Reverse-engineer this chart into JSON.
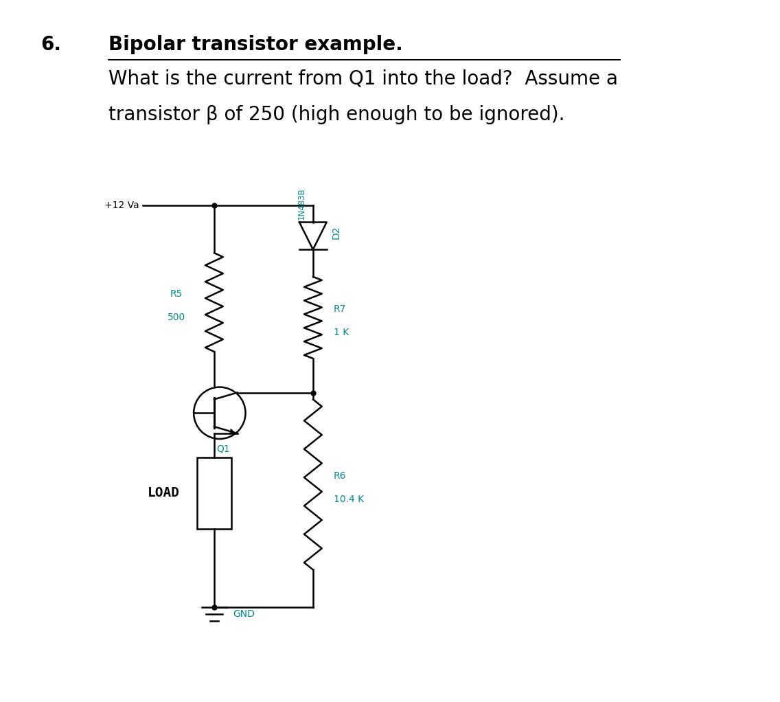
{
  "title_number": "6.",
  "title_line1": "Bipolar transistor example.",
  "title_line2": "What is the current from Q1 into the load?  Assume a",
  "title_line3": "transistor β of 250 (high enough to be ignored).",
  "circuit_color": "#008B8B",
  "wire_color": "#000000",
  "load_label": "LOAD",
  "gnd_label": "GND",
  "vcc_label": "+12 Va",
  "d2_label": "1N483B",
  "d2_name": "D2",
  "q1_label": "Q1",
  "r5_name": "R5",
  "r5_val": "500",
  "r7_name": "R7",
  "r7_val": "1 K",
  "r6_name": "R6",
  "r6_val": "10.4 K",
  "bg_color": "#ffffff",
  "font_size_title": 20,
  "font_size_circuit": 10
}
